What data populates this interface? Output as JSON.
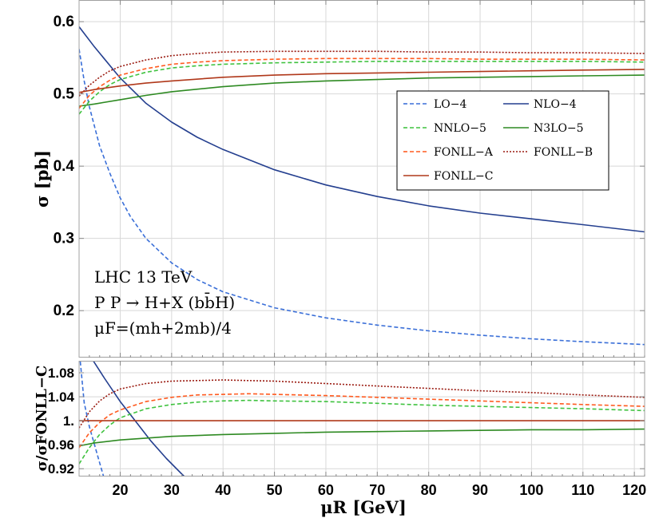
{
  "chart_data": [
    {
      "type": "line",
      "panel": "main",
      "ylabel": "σ [pb]",
      "xlim": [
        12,
        122
      ],
      "ylim": [
        0.135,
        0.63
      ],
      "x_ticks": [
        20,
        30,
        40,
        50,
        60,
        70,
        80,
        90,
        100,
        110,
        120
      ],
      "y_ticks": [
        0.2,
        0.3,
        0.4,
        0.5,
        0.6
      ],
      "y_tick_labels": [
        "0.2",
        "0.3",
        "0.4",
        "0.5",
        "0.6"
      ],
      "annotations": [
        "LHC 13 TeV",
        "P P → H+X (bb̄H)",
        "μF=(mh+2mb)/4"
      ],
      "legend": {
        "placement": "upper-right",
        "entries": [
          "LO−4",
          "NLO−4",
          "NNLO−5",
          "N3LO−5",
          "FONLL−A",
          "FONLL−B",
          "FONLL−C"
        ]
      },
      "series": [
        {
          "name": "LO−4",
          "color": "#3a6fd8",
          "style": "dashed",
          "x": [
            12,
            13,
            14,
            16,
            18,
            20,
            22,
            25,
            30,
            35,
            40,
            50,
            60,
            70,
            80,
            90,
            100,
            110,
            122
          ],
          "y": [
            0.562,
            0.518,
            0.482,
            0.428,
            0.39,
            0.356,
            0.33,
            0.3,
            0.266,
            0.243,
            0.226,
            0.204,
            0.19,
            0.18,
            0.172,
            0.166,
            0.161,
            0.157,
            0.153
          ]
        },
        {
          "name": "NLO−4",
          "color": "#243f8f",
          "style": "solid",
          "x": [
            12,
            15,
            20,
            25,
            30,
            35,
            40,
            50,
            60,
            70,
            80,
            90,
            100,
            110,
            122
          ],
          "y": [
            0.593,
            0.565,
            0.522,
            0.487,
            0.461,
            0.44,
            0.423,
            0.395,
            0.374,
            0.358,
            0.345,
            0.335,
            0.327,
            0.319,
            0.309
          ]
        },
        {
          "name": "NNLO−5",
          "color": "#3fc23f",
          "style": "dashed",
          "x": [
            12,
            14,
            16,
            18,
            20,
            25,
            30,
            35,
            40,
            50,
            60,
            70,
            80,
            90,
            100,
            110,
            122
          ],
          "y": [
            0.472,
            0.49,
            0.503,
            0.513,
            0.52,
            0.53,
            0.536,
            0.539,
            0.541,
            0.543,
            0.544,
            0.545,
            0.545,
            0.545,
            0.545,
            0.545,
            0.544
          ]
        },
        {
          "name": "N3LO−5",
          "color": "#2e8a22",
          "style": "solid",
          "x": [
            12,
            15,
            20,
            25,
            30,
            40,
            50,
            60,
            70,
            80,
            90,
            100,
            110,
            122
          ],
          "y": [
            0.483,
            0.486,
            0.492,
            0.498,
            0.503,
            0.51,
            0.515,
            0.518,
            0.52,
            0.522,
            0.523,
            0.524,
            0.525,
            0.526
          ]
        },
        {
          "name": "FONLL−A",
          "color": "#ff5a1f",
          "style": "dashed",
          "x": [
            12,
            14,
            16,
            18,
            20,
            25,
            30,
            35,
            40,
            50,
            60,
            70,
            80,
            90,
            100,
            110,
            122
          ],
          "y": [
            0.48,
            0.498,
            0.51,
            0.519,
            0.526,
            0.535,
            0.541,
            0.544,
            0.546,
            0.548,
            0.549,
            0.549,
            0.549,
            0.548,
            0.548,
            0.548,
            0.547
          ]
        },
        {
          "name": "FONLL−B",
          "color": "#9a1a10",
          "style": "dotted",
          "x": [
            12,
            14,
            16,
            18,
            20,
            25,
            30,
            35,
            40,
            50,
            60,
            70,
            80,
            90,
            100,
            110,
            122
          ],
          "y": [
            0.497,
            0.512,
            0.523,
            0.532,
            0.538,
            0.547,
            0.553,
            0.556,
            0.558,
            0.559,
            0.559,
            0.559,
            0.558,
            0.558,
            0.557,
            0.557,
            0.556
          ]
        },
        {
          "name": "FONLL−C",
          "color": "#b0381a",
          "style": "solid",
          "x": [
            12,
            15,
            20,
            25,
            30,
            40,
            50,
            60,
            70,
            80,
            90,
            100,
            110,
            122
          ],
          "y": [
            0.502,
            0.506,
            0.511,
            0.515,
            0.518,
            0.523,
            0.526,
            0.528,
            0.529,
            0.53,
            0.531,
            0.532,
            0.533,
            0.534
          ]
        }
      ]
    },
    {
      "type": "line",
      "panel": "ratio",
      "xlabel": "μR [GeV]",
      "ylabel": "σ/σFONLL−C",
      "xlim": [
        12,
        122
      ],
      "ylim": [
        0.907,
        1.1
      ],
      "x_ticks": [
        20,
        30,
        40,
        50,
        60,
        70,
        80,
        90,
        100,
        110,
        120
      ],
      "x_tick_labels": [
        "20",
        "30",
        "40",
        "50",
        "60",
        "70",
        "80",
        "90",
        "100",
        "110",
        "120"
      ],
      "y_ticks": [
        0.92,
        0.96,
        1.0,
        1.04,
        1.08
      ],
      "y_tick_labels": [
        "0.92",
        "0.96",
        "1.",
        "1.04",
        "1.08"
      ],
      "series": [
        {
          "name": "LO−4",
          "color": "#3a6fd8",
          "style": "dashed",
          "x": [
            12,
            13,
            14,
            15,
            16,
            17
          ],
          "y": [
            1.12,
            1.03,
            0.99,
            0.96,
            0.93,
            0.9
          ]
        },
        {
          "name": "NLO−4",
          "color": "#243f8f",
          "style": "solid",
          "x": [
            14,
            17,
            20,
            23,
            26,
            29,
            32,
            34
          ],
          "y": [
            1.11,
            1.07,
            1.032,
            0.999,
            0.966,
            0.937,
            0.911,
            0.895
          ]
        },
        {
          "name": "NNLO−5",
          "color": "#3fc23f",
          "style": "dashed",
          "x": [
            12,
            14,
            16,
            18,
            20,
            25,
            30,
            35,
            40,
            45,
            50,
            60,
            70,
            80,
            90,
            100,
            110,
            122
          ],
          "y": [
            0.928,
            0.955,
            0.977,
            0.993,
            1.005,
            1.02,
            1.027,
            1.031,
            1.033,
            1.034,
            1.033,
            1.032,
            1.029,
            1.026,
            1.024,
            1.022,
            1.02,
            1.017
          ]
        },
        {
          "name": "N3LO−5",
          "color": "#2e8a22",
          "style": "solid",
          "x": [
            12,
            15,
            20,
            25,
            30,
            40,
            50,
            60,
            70,
            80,
            90,
            100,
            110,
            122
          ],
          "y": [
            0.958,
            0.963,
            0.968,
            0.971,
            0.974,
            0.977,
            0.979,
            0.981,
            0.982,
            0.983,
            0.984,
            0.985,
            0.985,
            0.986
          ]
        },
        {
          "name": "FONLL−A",
          "color": "#ff5a1f",
          "style": "dashed",
          "x": [
            12,
            14,
            16,
            18,
            20,
            25,
            30,
            35,
            40,
            45,
            50,
            60,
            70,
            80,
            90,
            100,
            110,
            122
          ],
          "y": [
            0.955,
            0.98,
            0.997,
            1.01,
            1.018,
            1.032,
            1.039,
            1.043,
            1.044,
            1.045,
            1.044,
            1.042,
            1.039,
            1.036,
            1.033,
            1.03,
            1.027,
            1.024
          ]
        },
        {
          "name": "FONLL−B",
          "color": "#9a1a10",
          "style": "dotted",
          "x": [
            12,
            14,
            16,
            18,
            20,
            25,
            30,
            35,
            40,
            45,
            50,
            60,
            70,
            80,
            90,
            100,
            110,
            122
          ],
          "y": [
            0.988,
            1.015,
            1.033,
            1.045,
            1.053,
            1.062,
            1.066,
            1.067,
            1.068,
            1.067,
            1.066,
            1.062,
            1.058,
            1.054,
            1.05,
            1.047,
            1.043,
            1.039
          ]
        },
        {
          "name": "FONLL−C",
          "color": "#b0381a",
          "style": "solid",
          "x": [
            12,
            122
          ],
          "y": [
            1.0,
            1.0
          ]
        }
      ]
    }
  ]
}
